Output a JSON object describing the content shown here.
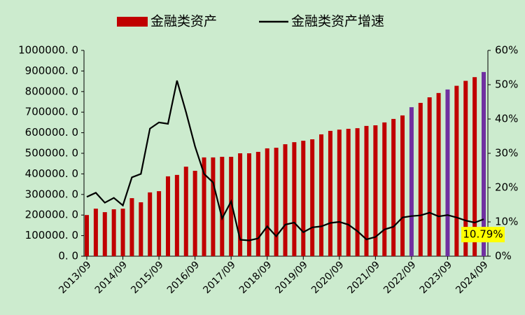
{
  "chart_data": {
    "type": "bar_line",
    "categories": [
      "2013/09",
      null,
      null,
      null,
      "2014/09",
      null,
      null,
      null,
      "2015/09",
      null,
      null,
      null,
      "2016/09",
      null,
      null,
      null,
      "2017/09",
      null,
      null,
      null,
      "2018/09",
      null,
      null,
      null,
      "2019/09",
      null,
      null,
      null,
      "2020/09",
      null,
      null,
      null,
      "2021/09",
      null,
      null,
      null,
      "2022/09",
      null,
      null,
      null,
      "2023/09",
      null,
      null,
      null,
      "2024/09"
    ],
    "series": [
      {
        "name": "金融类资产",
        "type": "bar",
        "color": "#c00000",
        "colors": [
          "#c00000",
          "#c00000",
          "#c00000",
          "#c00000",
          "#c00000",
          "#c00000",
          "#c00000",
          "#c00000",
          "#c00000",
          "#c00000",
          "#c00000",
          "#c00000",
          "#c00000",
          "#c00000",
          "#c00000",
          "#c00000",
          "#c00000",
          "#c00000",
          "#c00000",
          "#c00000",
          "#c00000",
          "#c00000",
          "#c00000",
          "#c00000",
          "#c00000",
          "#c00000",
          "#c00000",
          "#c00000",
          "#c00000",
          "#c00000",
          "#c00000",
          "#c00000",
          "#c00000",
          "#c00000",
          "#c00000",
          "#c00000",
          "#7030a0",
          "#c00000",
          "#c00000",
          "#c00000",
          "#7030a0",
          "#c00000",
          "#c00000",
          "#c00000",
          "#7030a0"
        ],
        "values": [
          200000,
          231000,
          214000,
          228000,
          231000,
          282000,
          262000,
          310000,
          316000,
          388000,
          395000,
          435000,
          415000,
          480000,
          480000,
          483000,
          483000,
          500000,
          500000,
          507000,
          524000,
          527000,
          544000,
          554000,
          561000,
          568000,
          592000,
          609000,
          615000,
          619000,
          622000,
          633000,
          636000,
          650000,
          667000,
          684000,
          724000,
          745000,
          772000,
          793000,
          810000,
          828000,
          852000,
          870000,
          895000
        ]
      },
      {
        "name": "金融类资产增速",
        "type": "line",
        "axis": "y2",
        "color": "#000000",
        "values": [
          17.3,
          18.5,
          15.6,
          17.0,
          14.8,
          23.0,
          24.0,
          37.2,
          39.0,
          38.6,
          51.2,
          42.0,
          32.0,
          24.0,
          21.5,
          11.0,
          16.0,
          4.8,
          4.6,
          5.2,
          8.7,
          5.8,
          9.2,
          9.8,
          7.0,
          8.4,
          8.7,
          9.7,
          10.0,
          9.2,
          7.3,
          4.9,
          5.6,
          7.8,
          8.6,
          11.3,
          11.7,
          11.9,
          12.7,
          11.6,
          12.0,
          11.3,
          10.4,
          9.8,
          10.79
        ],
        "value_labels": [
          null,
          null,
          null,
          null,
          null,
          null,
          null,
          null,
          null,
          null,
          null,
          null,
          null,
          null,
          null,
          null,
          null,
          null,
          null,
          null,
          null,
          null,
          null,
          null,
          null,
          null,
          null,
          null,
          null,
          null,
          null,
          null,
          null,
          null,
          null,
          null,
          null,
          null,
          null,
          null,
          null,
          null,
          null,
          null,
          "10.79%"
        ]
      }
    ],
    "ylim": [
      0,
      1000000
    ],
    "yticks": [
      {
        "value": 0,
        "label": "0. 0"
      },
      {
        "value": 100000,
        "label": "100000. 0"
      },
      {
        "value": 200000,
        "label": "200000. 0"
      },
      {
        "value": 300000,
        "label": "300000. 0"
      },
      {
        "value": 400000,
        "label": "400000. 0"
      },
      {
        "value": 500000,
        "label": "500000. 0"
      },
      {
        "value": 600000,
        "label": "600000. 0"
      },
      {
        "value": 700000,
        "label": "700000. 0"
      },
      {
        "value": 800000,
        "label": "800000. 0"
      },
      {
        "value": 900000,
        "label": "900000. 0"
      },
      {
        "value": 1000000,
        "label": "1000000. 0"
      }
    ],
    "y2lim": [
      0,
      60
    ],
    "y2ticks": [
      {
        "value": 0,
        "label": "0%"
      },
      {
        "value": 10,
        "label": "10%"
      },
      {
        "value": 20,
        "label": "20%"
      },
      {
        "value": 30,
        "label": "30%"
      },
      {
        "value": 40,
        "label": "40%"
      },
      {
        "value": 50,
        "label": "50%"
      },
      {
        "value": 60,
        "label": "60%"
      }
    ],
    "legend": "top",
    "grid": false
  }
}
